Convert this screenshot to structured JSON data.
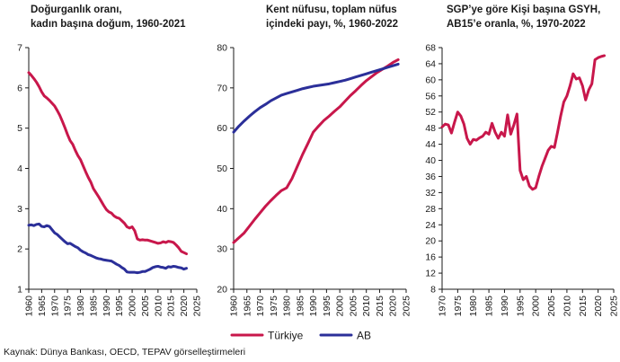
{
  "source": "Kaynak: Dünya Bankası, OECD, TEPAV görselleştirmeleri",
  "legend": [
    {
      "name": "Türkiye",
      "color": "#c8174b"
    },
    {
      "name": "AB",
      "color": "#2b2f99"
    }
  ],
  "chart_data": [
    {
      "type": "line",
      "title": [
        "Doğurganlık oranı,",
        "kadın başına doğum, 1960-2021"
      ],
      "xlim": [
        1960,
        2025
      ],
      "ylim": [
        1,
        7
      ],
      "xticks": [
        1960,
        1965,
        1970,
        1975,
        1980,
        1985,
        1990,
        1995,
        2000,
        2005,
        2010,
        2015,
        2020,
        2025
      ],
      "yticks": [
        1,
        2,
        3,
        4,
        5,
        6,
        7
      ],
      "series": [
        {
          "name": "Türkiye",
          "color": "#c8174b",
          "x": [
            1960,
            1961,
            1962,
            1963,
            1964,
            1965,
            1966,
            1967,
            1968,
            1969,
            1970,
            1971,
            1972,
            1973,
            1974,
            1975,
            1976,
            1977,
            1978,
            1979,
            1980,
            1981,
            1982,
            1983,
            1984,
            1985,
            1986,
            1987,
            1988,
            1989,
            1990,
            1991,
            1992,
            1993,
            1994,
            1995,
            1996,
            1997,
            1998,
            1999,
            2000,
            2001,
            2002,
            2003,
            2004,
            2005,
            2006,
            2007,
            2008,
            2009,
            2010,
            2011,
            2012,
            2013,
            2014,
            2015,
            2016,
            2017,
            2018,
            2019,
            2020,
            2021
          ],
          "values": [
            6.38,
            6.31,
            6.23,
            6.14,
            6.03,
            5.9,
            5.8,
            5.75,
            5.69,
            5.62,
            5.55,
            5.44,
            5.32,
            5.17,
            5.01,
            4.84,
            4.69,
            4.6,
            4.45,
            4.32,
            4.22,
            4.07,
            3.92,
            3.78,
            3.66,
            3.5,
            3.4,
            3.3,
            3.19,
            3.08,
            2.98,
            2.92,
            2.89,
            2.82,
            2.78,
            2.76,
            2.7,
            2.64,
            2.55,
            2.52,
            2.55,
            2.45,
            2.25,
            2.22,
            2.23,
            2.22,
            2.22,
            2.2,
            2.18,
            2.16,
            2.14,
            2.15,
            2.18,
            2.16,
            2.19,
            2.18,
            2.16,
            2.1,
            2.03,
            1.94,
            1.91,
            1.88
          ]
        },
        {
          "name": "AB",
          "color": "#2b2f99",
          "x": [
            1960,
            1961,
            1962,
            1963,
            1964,
            1965,
            1966,
            1967,
            1968,
            1969,
            1970,
            1971,
            1972,
            1973,
            1974,
            1975,
            1976,
            1977,
            1978,
            1979,
            1980,
            1981,
            1982,
            1983,
            1984,
            1985,
            1986,
            1987,
            1988,
            1989,
            1990,
            1991,
            1992,
            1993,
            1994,
            1995,
            1996,
            1997,
            1998,
            1999,
            2000,
            2001,
            2002,
            2003,
            2004,
            2005,
            2006,
            2007,
            2008,
            2009,
            2010,
            2011,
            2012,
            2013,
            2014,
            2015,
            2016,
            2017,
            2018,
            2019,
            2020,
            2021
          ],
          "values": [
            2.59,
            2.6,
            2.58,
            2.61,
            2.62,
            2.56,
            2.55,
            2.58,
            2.56,
            2.48,
            2.4,
            2.36,
            2.3,
            2.24,
            2.18,
            2.13,
            2.14,
            2.1,
            2.06,
            2.03,
            1.97,
            1.93,
            1.9,
            1.86,
            1.84,
            1.81,
            1.78,
            1.76,
            1.75,
            1.73,
            1.72,
            1.71,
            1.7,
            1.66,
            1.62,
            1.59,
            1.54,
            1.5,
            1.43,
            1.42,
            1.42,
            1.42,
            1.41,
            1.42,
            1.44,
            1.44,
            1.47,
            1.5,
            1.54,
            1.56,
            1.57,
            1.55,
            1.54,
            1.52,
            1.56,
            1.55,
            1.57,
            1.56,
            1.54,
            1.53,
            1.5,
            1.52
          ]
        }
      ]
    },
    {
      "type": "line",
      "title": [
        "Kent nüfusu, toplam nüfus",
        "içindeki payı, %, 1960-2022"
      ],
      "xlim": [
        1960,
        2025
      ],
      "ylim": [
        20,
        80
      ],
      "xticks": [
        1960,
        1965,
        1970,
        1975,
        1980,
        1985,
        1990,
        1995,
        2000,
        2005,
        2010,
        2015,
        2020,
        2025
      ],
      "yticks": [
        20,
        30,
        40,
        50,
        60,
        70,
        80
      ],
      "series": [
        {
          "name": "Türkiye",
          "color": "#c8174b",
          "x": [
            1960,
            1962,
            1964,
            1966,
            1968,
            1970,
            1972,
            1974,
            1976,
            1978,
            1980,
            1982,
            1984,
            1986,
            1988,
            1990,
            1992,
            1994,
            1996,
            1998,
            2000,
            2002,
            2004,
            2006,
            2008,
            2010,
            2012,
            2014,
            2016,
            2018,
            2020,
            2022
          ],
          "values": [
            31.6,
            32.8,
            34.0,
            35.7,
            37.4,
            39.0,
            40.6,
            42.0,
            43.3,
            44.5,
            45.2,
            47.5,
            50.5,
            53.5,
            56.2,
            59.0,
            60.5,
            61.9,
            63.0,
            64.2,
            65.3,
            66.7,
            68.1,
            69.3,
            70.6,
            71.8,
            72.8,
            73.8,
            74.6,
            75.4,
            76.3,
            77.0
          ]
        },
        {
          "name": "AB",
          "color": "#2b2f99",
          "x": [
            1960,
            1962,
            1964,
            1966,
            1968,
            1970,
            1972,
            1974,
            1976,
            1978,
            1980,
            1982,
            1984,
            1986,
            1988,
            1990,
            1992,
            1994,
            1996,
            1998,
            2000,
            2002,
            2004,
            2006,
            2008,
            2010,
            2012,
            2014,
            2016,
            2018,
            2020,
            2022
          ],
          "values": [
            59.0,
            60.5,
            61.8,
            63.0,
            64.1,
            65.1,
            65.9,
            66.8,
            67.5,
            68.2,
            68.6,
            69.0,
            69.4,
            69.8,
            70.1,
            70.4,
            70.6,
            70.8,
            71.0,
            71.3,
            71.6,
            71.9,
            72.3,
            72.7,
            73.1,
            73.5,
            73.9,
            74.3,
            74.7,
            75.1,
            75.5,
            75.9
          ]
        }
      ]
    },
    {
      "type": "line",
      "title": [
        "SGP’ye göre Kişi başına GSYH,",
        "AB15’e oranla, %, 1970-2022"
      ],
      "xlim": [
        1970,
        2025
      ],
      "ylim": [
        8,
        68
      ],
      "xticks": [
        1970,
        1975,
        1980,
        1985,
        1990,
        1995,
        2000,
        2005,
        2010,
        2015,
        2020,
        2025
      ],
      "yticks": [
        8,
        12,
        16,
        20,
        24,
        28,
        32,
        36,
        40,
        44,
        48,
        52,
        56,
        60,
        64,
        68
      ],
      "series": [
        {
          "name": "Türkiye",
          "color": "#c8174b",
          "x": [
            1970,
            1971,
            1972,
            1973,
            1974,
            1975,
            1976,
            1977,
            1978,
            1979,
            1980,
            1981,
            1982,
            1983,
            1984,
            1985,
            1986,
            1987,
            1988,
            1989,
            1990,
            1991,
            1992,
            1993,
            1994,
            1995,
            1996,
            1997,
            1998,
            1999,
            2000,
            2001,
            2002,
            2003,
            2004,
            2005,
            2006,
            2007,
            2008,
            2009,
            2010,
            2011,
            2012,
            2013,
            2014,
            2015,
            2016,
            2017,
            2018,
            2019,
            2020,
            2021,
            2022
          ],
          "values": [
            48.3,
            49.0,
            48.8,
            46.8,
            49.5,
            52.0,
            51.0,
            49.0,
            45.5,
            44.0,
            45.2,
            45.0,
            45.6,
            46.0,
            47.0,
            46.5,
            49.2,
            47.0,
            45.5,
            47.0,
            46.0,
            51.3,
            46.5,
            48.8,
            51.5,
            37.5,
            35.2,
            36.0,
            33.6,
            32.8,
            33.2,
            36.0,
            38.5,
            40.5,
            42.5,
            43.5,
            43.2,
            47.0,
            51.0,
            54.5,
            56.0,
            58.5,
            61.5,
            60.2,
            60.5,
            58.5,
            55.0,
            57.5,
            59.0,
            65.0,
            65.5,
            65.8,
            66.0
          ]
        }
      ]
    }
  ]
}
